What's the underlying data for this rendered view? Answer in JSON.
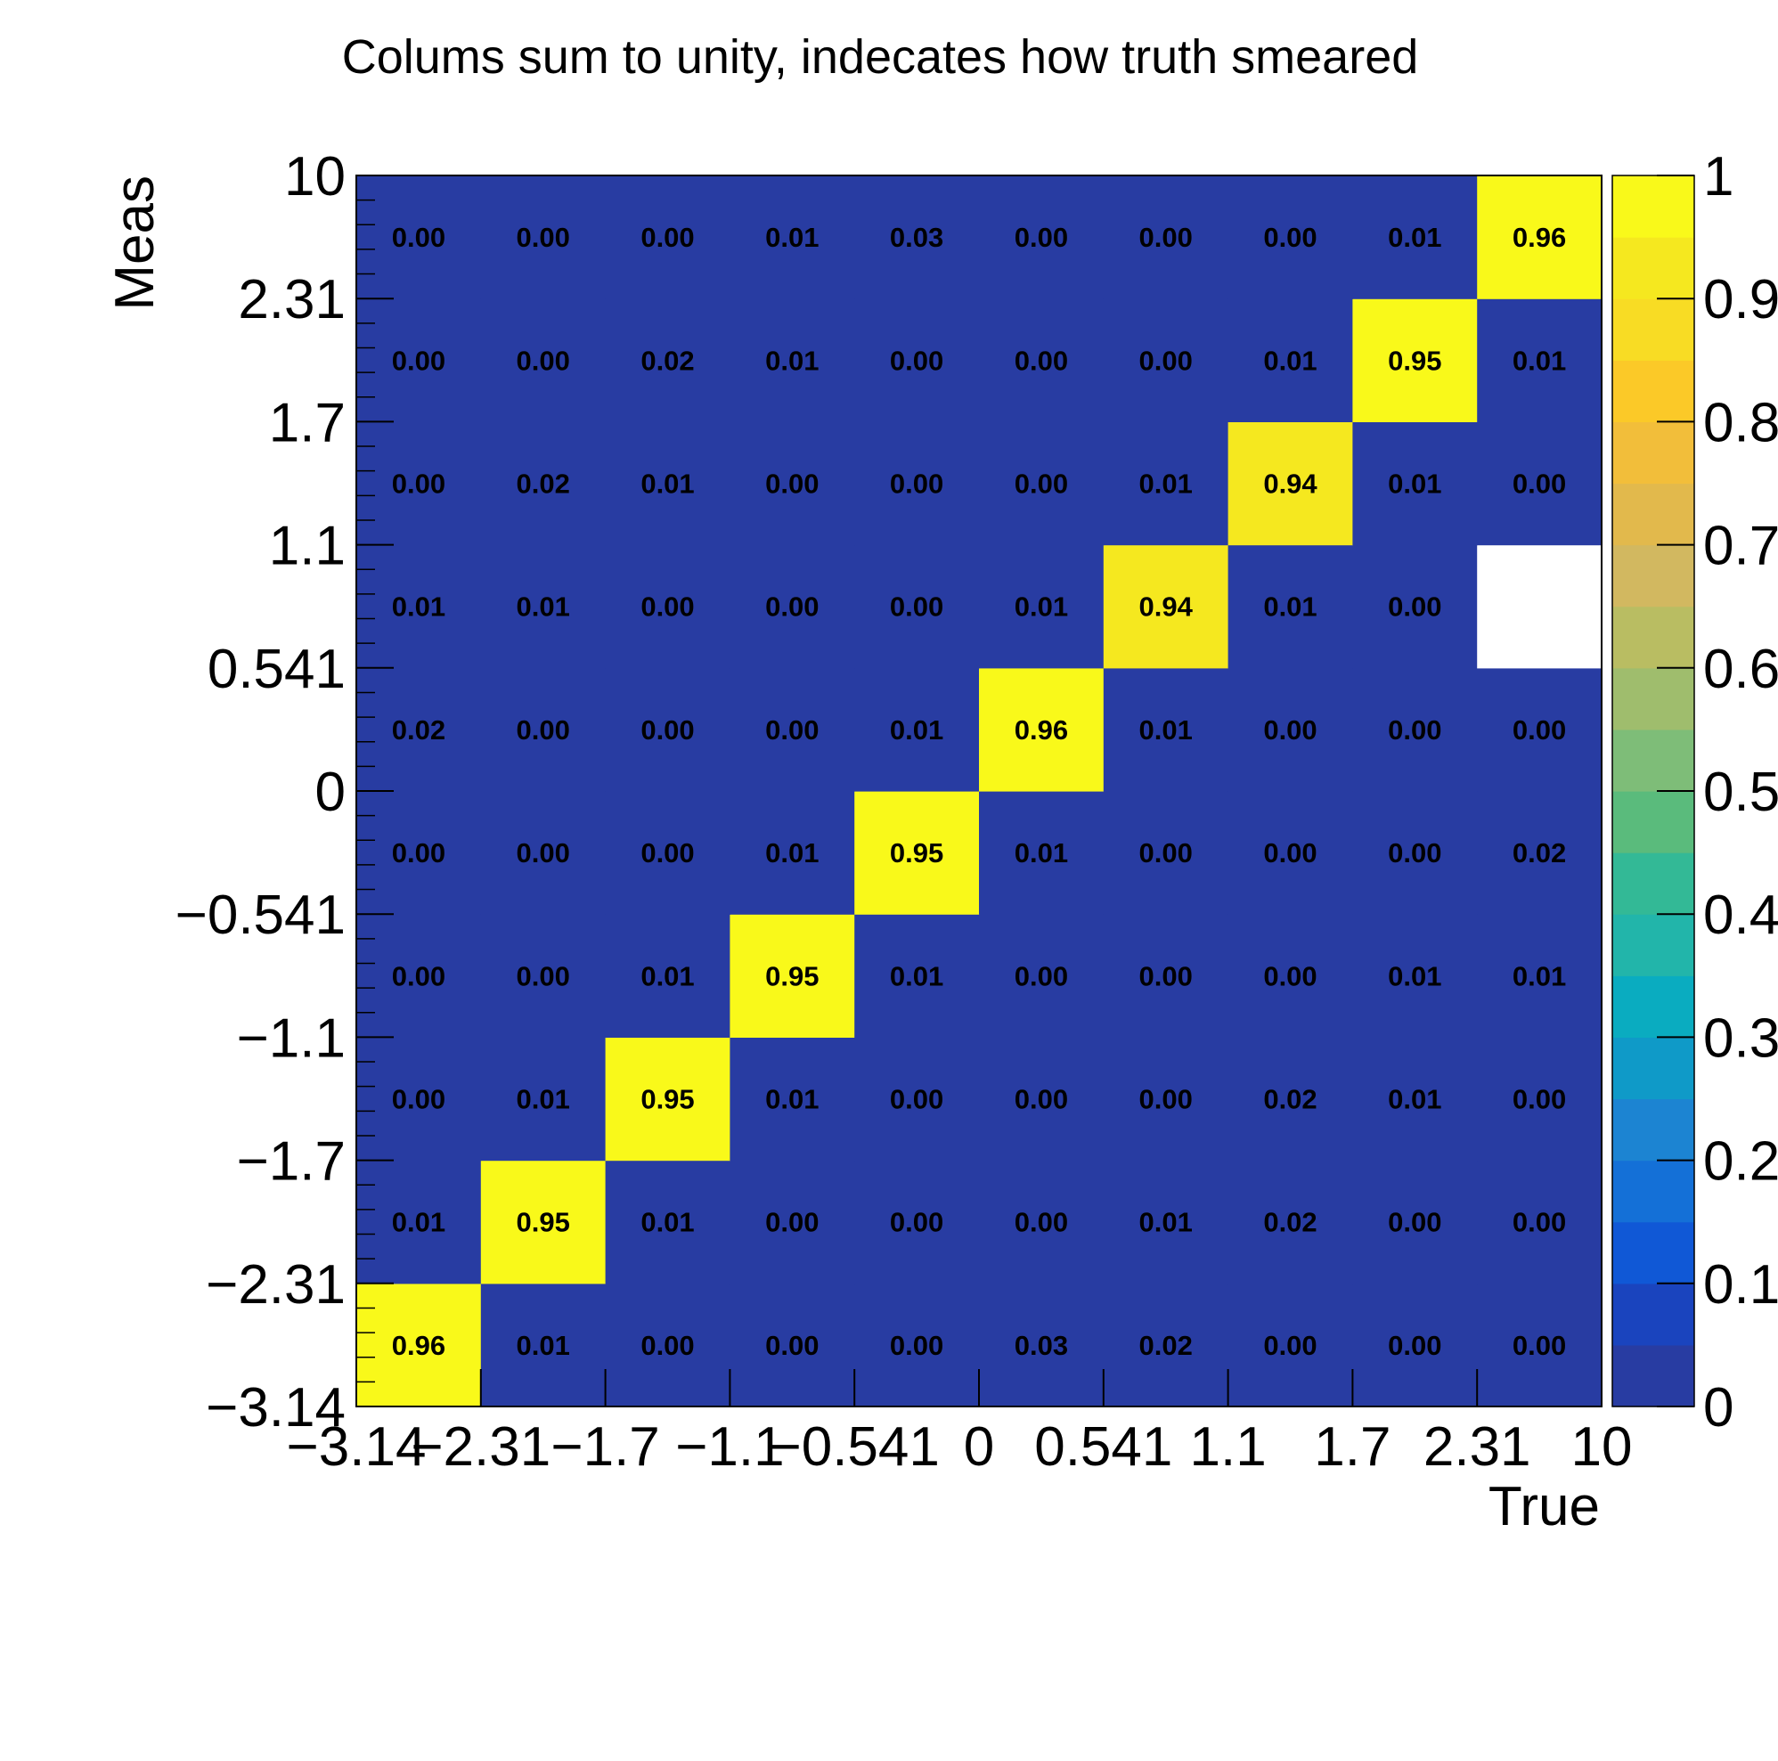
{
  "chart_data": {
    "type": "heatmap",
    "title": "Colums sum to unity, indecates how truth smeared",
    "xlabel": "True",
    "ylabel": "Meas",
    "x_tick_labels": [
      "−3.14",
      "−2.31",
      "−1.7",
      "−1.1",
      "−0.541",
      "0",
      "0.541",
      "1.1",
      "1.7",
      "2.31",
      "10"
    ],
    "y_tick_labels": [
      "−3.14",
      "−2.31",
      "−1.7",
      "−1.1",
      "−0.541",
      "0",
      "0.541",
      "1.1",
      "1.7",
      "2.31",
      "10"
    ],
    "colorbar_tick_labels": [
      "0",
      "0.1",
      "0.2",
      "0.3",
      "0.4",
      "0.5",
      "0.6",
      "0.7",
      "0.8",
      "0.9",
      "1"
    ],
    "zlim": [
      0,
      1
    ],
    "matrix_rows_bottom_to_top": [
      [
        "0.96",
        "0.01",
        "0.00",
        "0.00",
        "0.00",
        "0.03",
        "0.02",
        "0.00",
        "0.00",
        "0.00"
      ],
      [
        "0.01",
        "0.95",
        "0.01",
        "0.00",
        "0.00",
        "0.00",
        "0.01",
        "0.02",
        "0.00",
        "0.00"
      ],
      [
        "0.00",
        "0.01",
        "0.95",
        "0.01",
        "0.00",
        "0.00",
        "0.00",
        "0.02",
        "0.01",
        "0.00"
      ],
      [
        "0.00",
        "0.00",
        "0.01",
        "0.95",
        "0.01",
        "0.00",
        "0.00",
        "0.00",
        "0.01",
        "0.01"
      ],
      [
        "0.00",
        "0.00",
        "0.00",
        "0.01",
        "0.95",
        "0.01",
        "0.00",
        "0.00",
        "0.00",
        "0.02"
      ],
      [
        "0.02",
        "0.00",
        "0.00",
        "0.00",
        "0.01",
        "0.96",
        "0.01",
        "0.00",
        "0.00",
        "0.00"
      ],
      [
        "0.01",
        "0.01",
        "0.00",
        "0.00",
        "0.00",
        "0.01",
        "0.94",
        "0.01",
        "0.00",
        null
      ],
      [
        "0.00",
        "0.02",
        "0.01",
        "0.00",
        "0.00",
        "0.00",
        "0.01",
        "0.94",
        "0.01",
        "0.00"
      ],
      [
        "0.00",
        "0.00",
        "0.02",
        "0.01",
        "0.00",
        "0.00",
        "0.00",
        "0.01",
        "0.95",
        "0.01"
      ],
      [
        "0.00",
        "0.00",
        "0.00",
        "0.01",
        "0.03",
        "0.00",
        "0.00",
        "0.00",
        "0.01",
        "0.96"
      ]
    ],
    "grid": false,
    "colormap": [
      "#283ca2",
      "#1a44be",
      "#1058d6",
      "#1470d7",
      "#1c84d2",
      "#0f9ac8",
      "#0aacc0",
      "#22b5aa",
      "#33b996",
      "#5abb7c",
      "#7ebd78",
      "#9fbd6d",
      "#b9bd62",
      "#d2b860",
      "#e2b94c",
      "#f2be3a",
      "#fbc928",
      "#f8dc24",
      "#f5e81f",
      "#f9f91a"
    ]
  }
}
